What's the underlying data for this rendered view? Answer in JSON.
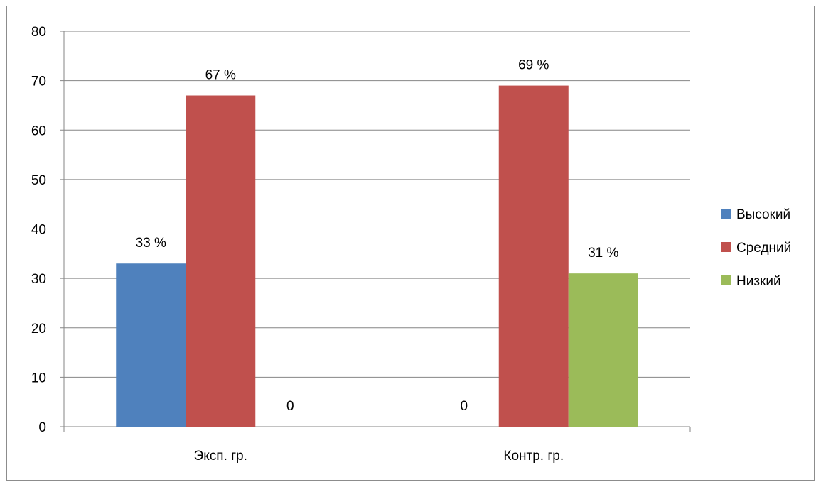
{
  "chart_data": {
    "type": "bar",
    "categories": [
      "Эксп. гр.",
      "Контр. гр."
    ],
    "series": [
      {
        "name": "Высокий",
        "values": [
          33,
          0
        ],
        "labels": [
          "33 %",
          "0"
        ],
        "color": "#4f81bd"
      },
      {
        "name": "Средний",
        "values": [
          67,
          69
        ],
        "labels": [
          "67 %",
          "69 %"
        ],
        "color": "#c0504d"
      },
      {
        "name": "Низкий",
        "values": [
          0,
          31
        ],
        "labels": [
          "0",
          "31 %"
        ],
        "color": "#9bbb59"
      }
    ],
    "ylim": [
      0,
      80
    ],
    "yticks": [
      0,
      10,
      20,
      30,
      40,
      50,
      60,
      70,
      80
    ],
    "grid": true,
    "legend_position": "right"
  }
}
